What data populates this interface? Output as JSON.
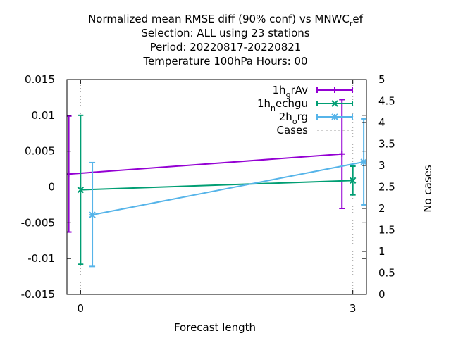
{
  "chart_data": {
    "type": "line",
    "title_lines": [
      "Normalized mean RMSE diff (90% conf) vs MNWC",
      "Selection: ALL using    23 stations",
      "Period: 20220817-20220821",
      "Temperature 100hPa   Hours:  00"
    ],
    "title_subscript_suffix": {
      "sub": "r",
      "rest": "ef"
    },
    "xlabel": "Forecast length",
    "ylabel": "",
    "y2label": "No cases",
    "xlim": [
      -0.15,
      3.15
    ],
    "ylim": [
      -0.015,
      0.015
    ],
    "y2lim": [
      0,
      5
    ],
    "x_ticks": [
      0,
      3
    ],
    "x_tick_labels": [
      "0",
      "3"
    ],
    "y_ticks": [
      -0.015,
      -0.01,
      -0.005,
      0,
      0.005,
      0.01,
      0.015
    ],
    "y_tick_labels": [
      "-0.015",
      "-0.01",
      "-0.005",
      "0",
      "0.005",
      "0.01",
      "0.015"
    ],
    "y2_ticks": [
      0,
      0.5,
      1,
      1.5,
      2,
      2.5,
      3,
      3.5,
      4,
      4.5,
      5
    ],
    "y2_tick_labels": [
      "0",
      "0.5",
      "1",
      "1.5",
      "2",
      "2.5",
      "3",
      "3.5",
      "4",
      "4.5",
      "5"
    ],
    "grid": "dotted vertical lines at x ticks",
    "legend_position": "top-right",
    "series": [
      {
        "name_base": "1h",
        "name_sub": "g",
        "name_rest": "rAv",
        "color": "#9400d3",
        "marker": "plus",
        "x": [
          -0.13,
          2.88
        ],
        "y": [
          0.0018,
          0.0046
        ],
        "err_low": [
          -0.0063,
          -0.003
        ],
        "err_high": [
          0.0099,
          0.0122
        ]
      },
      {
        "name_base": "1h",
        "name_sub": "n",
        "name_rest": "echgu",
        "color": "#009e73",
        "marker": "x",
        "x": [
          0.0,
          3.0
        ],
        "y": [
          -0.0004,
          0.0009
        ],
        "err_low": [
          -0.0108,
          -0.0011
        ],
        "err_high": [
          0.01,
          0.0029
        ]
      },
      {
        "name_base": "2h",
        "name_sub": "o",
        "name_rest": "rg",
        "color": "#56b4e9",
        "marker": "asterisk",
        "x": [
          0.13,
          3.12
        ],
        "y": [
          -0.0039,
          0.0035
        ],
        "err_low": [
          -0.0111,
          -0.0025
        ],
        "err_high": [
          0.0034,
          0.0095
        ]
      },
      {
        "name_base": "Cases",
        "name_sub": "",
        "name_rest": "",
        "color": "#a0a0a0",
        "marker": "none",
        "dashed": true,
        "x": [
          0,
          3
        ],
        "y2": [
          5,
          5
        ]
      }
    ]
  }
}
